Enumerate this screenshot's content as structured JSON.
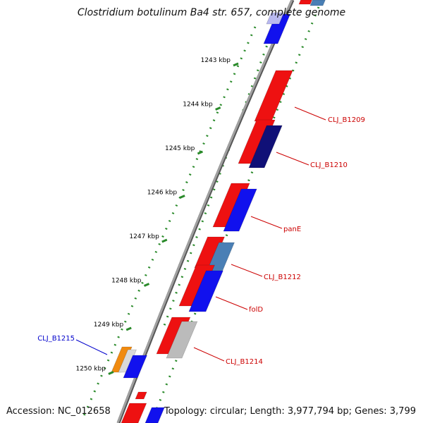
{
  "title": "Clostridium botulinum Ba4 str. 657, complete genome",
  "footer": {
    "accession": "Accession: NC_012658",
    "summary": "Topology: circular; Length: 3,977,794 bp; Genes: 3,799"
  },
  "ticks": [
    {
      "label": "1243 kbp",
      "pos": 1243
    },
    {
      "label": "1244 kbp",
      "pos": 1244
    },
    {
      "label": "1245 kbp",
      "pos": 1245
    },
    {
      "label": "1246 kbp",
      "pos": 1246
    },
    {
      "label": "1247 kbp",
      "pos": 1247
    },
    {
      "label": "1248 kbp",
      "pos": 1248
    },
    {
      "label": "1249 kbp",
      "pos": 1249
    },
    {
      "label": "1250 kbp",
      "pos": 1250
    }
  ],
  "gene_labels": [
    {
      "text": "CLJ_B1209",
      "color": "#cc0000"
    },
    {
      "text": "CLJ_B1210",
      "color": "#cc0000"
    },
    {
      "text": "panE",
      "color": "#cc0000"
    },
    {
      "text": "CLJ_B1212",
      "color": "#cc0000"
    },
    {
      "text": "folD",
      "color": "#cc0000"
    },
    {
      "text": "CLJ_B1214",
      "color": "#cc0000"
    },
    {
      "text": "CLJ_B1215",
      "color": "#0000cc"
    }
  ],
  "legend_colors": {
    "forward_cds": "#ee1111",
    "reverse_cds": "#1111ee",
    "dark_cds": "#101077",
    "steel_cds": "#4a7fb5",
    "light_cds": "#bbbbbb",
    "orange_cds": "#f08a10",
    "backbone": "#888888",
    "dotted_track": "#2a8a2a"
  }
}
